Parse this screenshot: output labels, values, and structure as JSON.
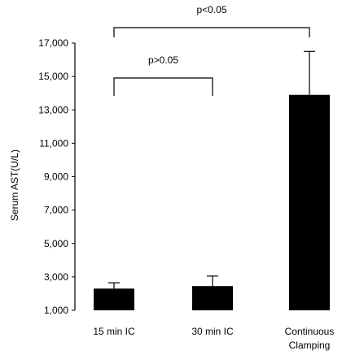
{
  "chart_data": {
    "type": "bar",
    "ylabel": "Serum AST(U/L)",
    "ylim": [
      1000,
      17000
    ],
    "yticks": [
      1000,
      3000,
      5000,
      7000,
      9000,
      11000,
      13000,
      15000,
      17000
    ],
    "ytick_labels": [
      "1,000",
      "3,000",
      "5,000",
      "7,000",
      "9,000",
      "11,000",
      "13,000",
      "15,000",
      "17,000"
    ],
    "categories": [
      {
        "lines": [
          "15 min IC"
        ]
      },
      {
        "lines": [
          "30 min IC"
        ]
      },
      {
        "lines": [
          "Continuous",
          "Clamping"
        ]
      }
    ],
    "values": [
      2300,
      2450,
      13900
    ],
    "errors": [
      350,
      600,
      2600
    ],
    "bar_color": "#000000",
    "grid": false,
    "significance": [
      {
        "label": "p>0.05",
        "from": 0,
        "to": 1
      },
      {
        "label": "p<0.05",
        "from": 0,
        "to": 2
      }
    ]
  }
}
